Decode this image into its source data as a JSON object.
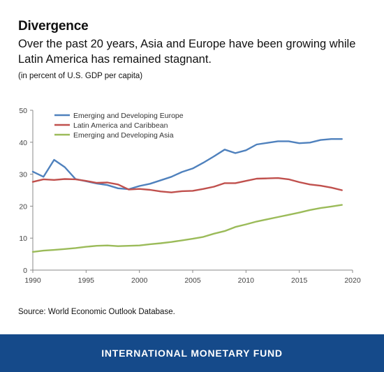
{
  "header": {
    "title": "Divergence",
    "subtitle": "Over the past 20 years, Asia and Europe have been growing while Latin America has remained stagnant.",
    "unit_note": "(in percent of U.S. GDP per capita)"
  },
  "footer": {
    "source": "Source: World Economic Outlook Database.",
    "brand": "INTERNATIONAL MONETARY FUND",
    "brand_color": "#154a8a"
  },
  "chart_data": {
    "type": "line",
    "title": "",
    "xlabel": "",
    "ylabel": "",
    "xlim": [
      1990,
      2020
    ],
    "ylim": [
      0,
      50
    ],
    "x_ticks": [
      1990,
      1995,
      2000,
      2005,
      2010,
      2015,
      2020
    ],
    "y_ticks": [
      0,
      10,
      20,
      30,
      40,
      50
    ],
    "grid": false,
    "legend_position": "top-left",
    "x": [
      1990,
      1991,
      1992,
      1993,
      1994,
      1995,
      1996,
      1997,
      1998,
      1999,
      2000,
      2001,
      2002,
      2003,
      2004,
      2005,
      2006,
      2007,
      2008,
      2009,
      2010,
      2011,
      2012,
      2013,
      2014,
      2015,
      2016,
      2017,
      2018,
      2019
    ],
    "series": [
      {
        "name": "Emerging and Developing Europe",
        "color": "#4f81bd",
        "values": [
          30.8,
          29.2,
          34.5,
          32.2,
          28.5,
          27.8,
          27.1,
          26.6,
          25.6,
          25.3,
          26.3,
          27.0,
          28.1,
          29.2,
          30.7,
          31.8,
          33.6,
          35.6,
          37.7,
          36.6,
          37.5,
          39.3,
          39.8,
          40.3,
          40.3,
          39.7,
          39.9,
          40.7,
          41.0,
          41.0
        ]
      },
      {
        "name": "Latin America and Caribbean",
        "color": "#c0504d",
        "values": [
          27.6,
          28.4,
          28.2,
          28.5,
          28.4,
          27.9,
          27.3,
          27.4,
          26.8,
          25.2,
          25.4,
          25.1,
          24.6,
          24.3,
          24.7,
          24.8,
          25.4,
          26.1,
          27.2,
          27.2,
          27.9,
          28.6,
          28.7,
          28.8,
          28.4,
          27.5,
          26.8,
          26.4,
          25.8,
          25.0
        ]
      },
      {
        "name": "Emerging and Developing Asia",
        "color": "#9bbb59",
        "values": [
          5.7,
          6.1,
          6.3,
          6.6,
          6.9,
          7.3,
          7.6,
          7.7,
          7.5,
          7.6,
          7.7,
          8.1,
          8.4,
          8.8,
          9.3,
          9.8,
          10.4,
          11.4,
          12.2,
          13.5,
          14.3,
          15.2,
          15.9,
          16.6,
          17.3,
          18.0,
          18.8,
          19.4,
          19.9,
          20.4
        ]
      }
    ]
  }
}
